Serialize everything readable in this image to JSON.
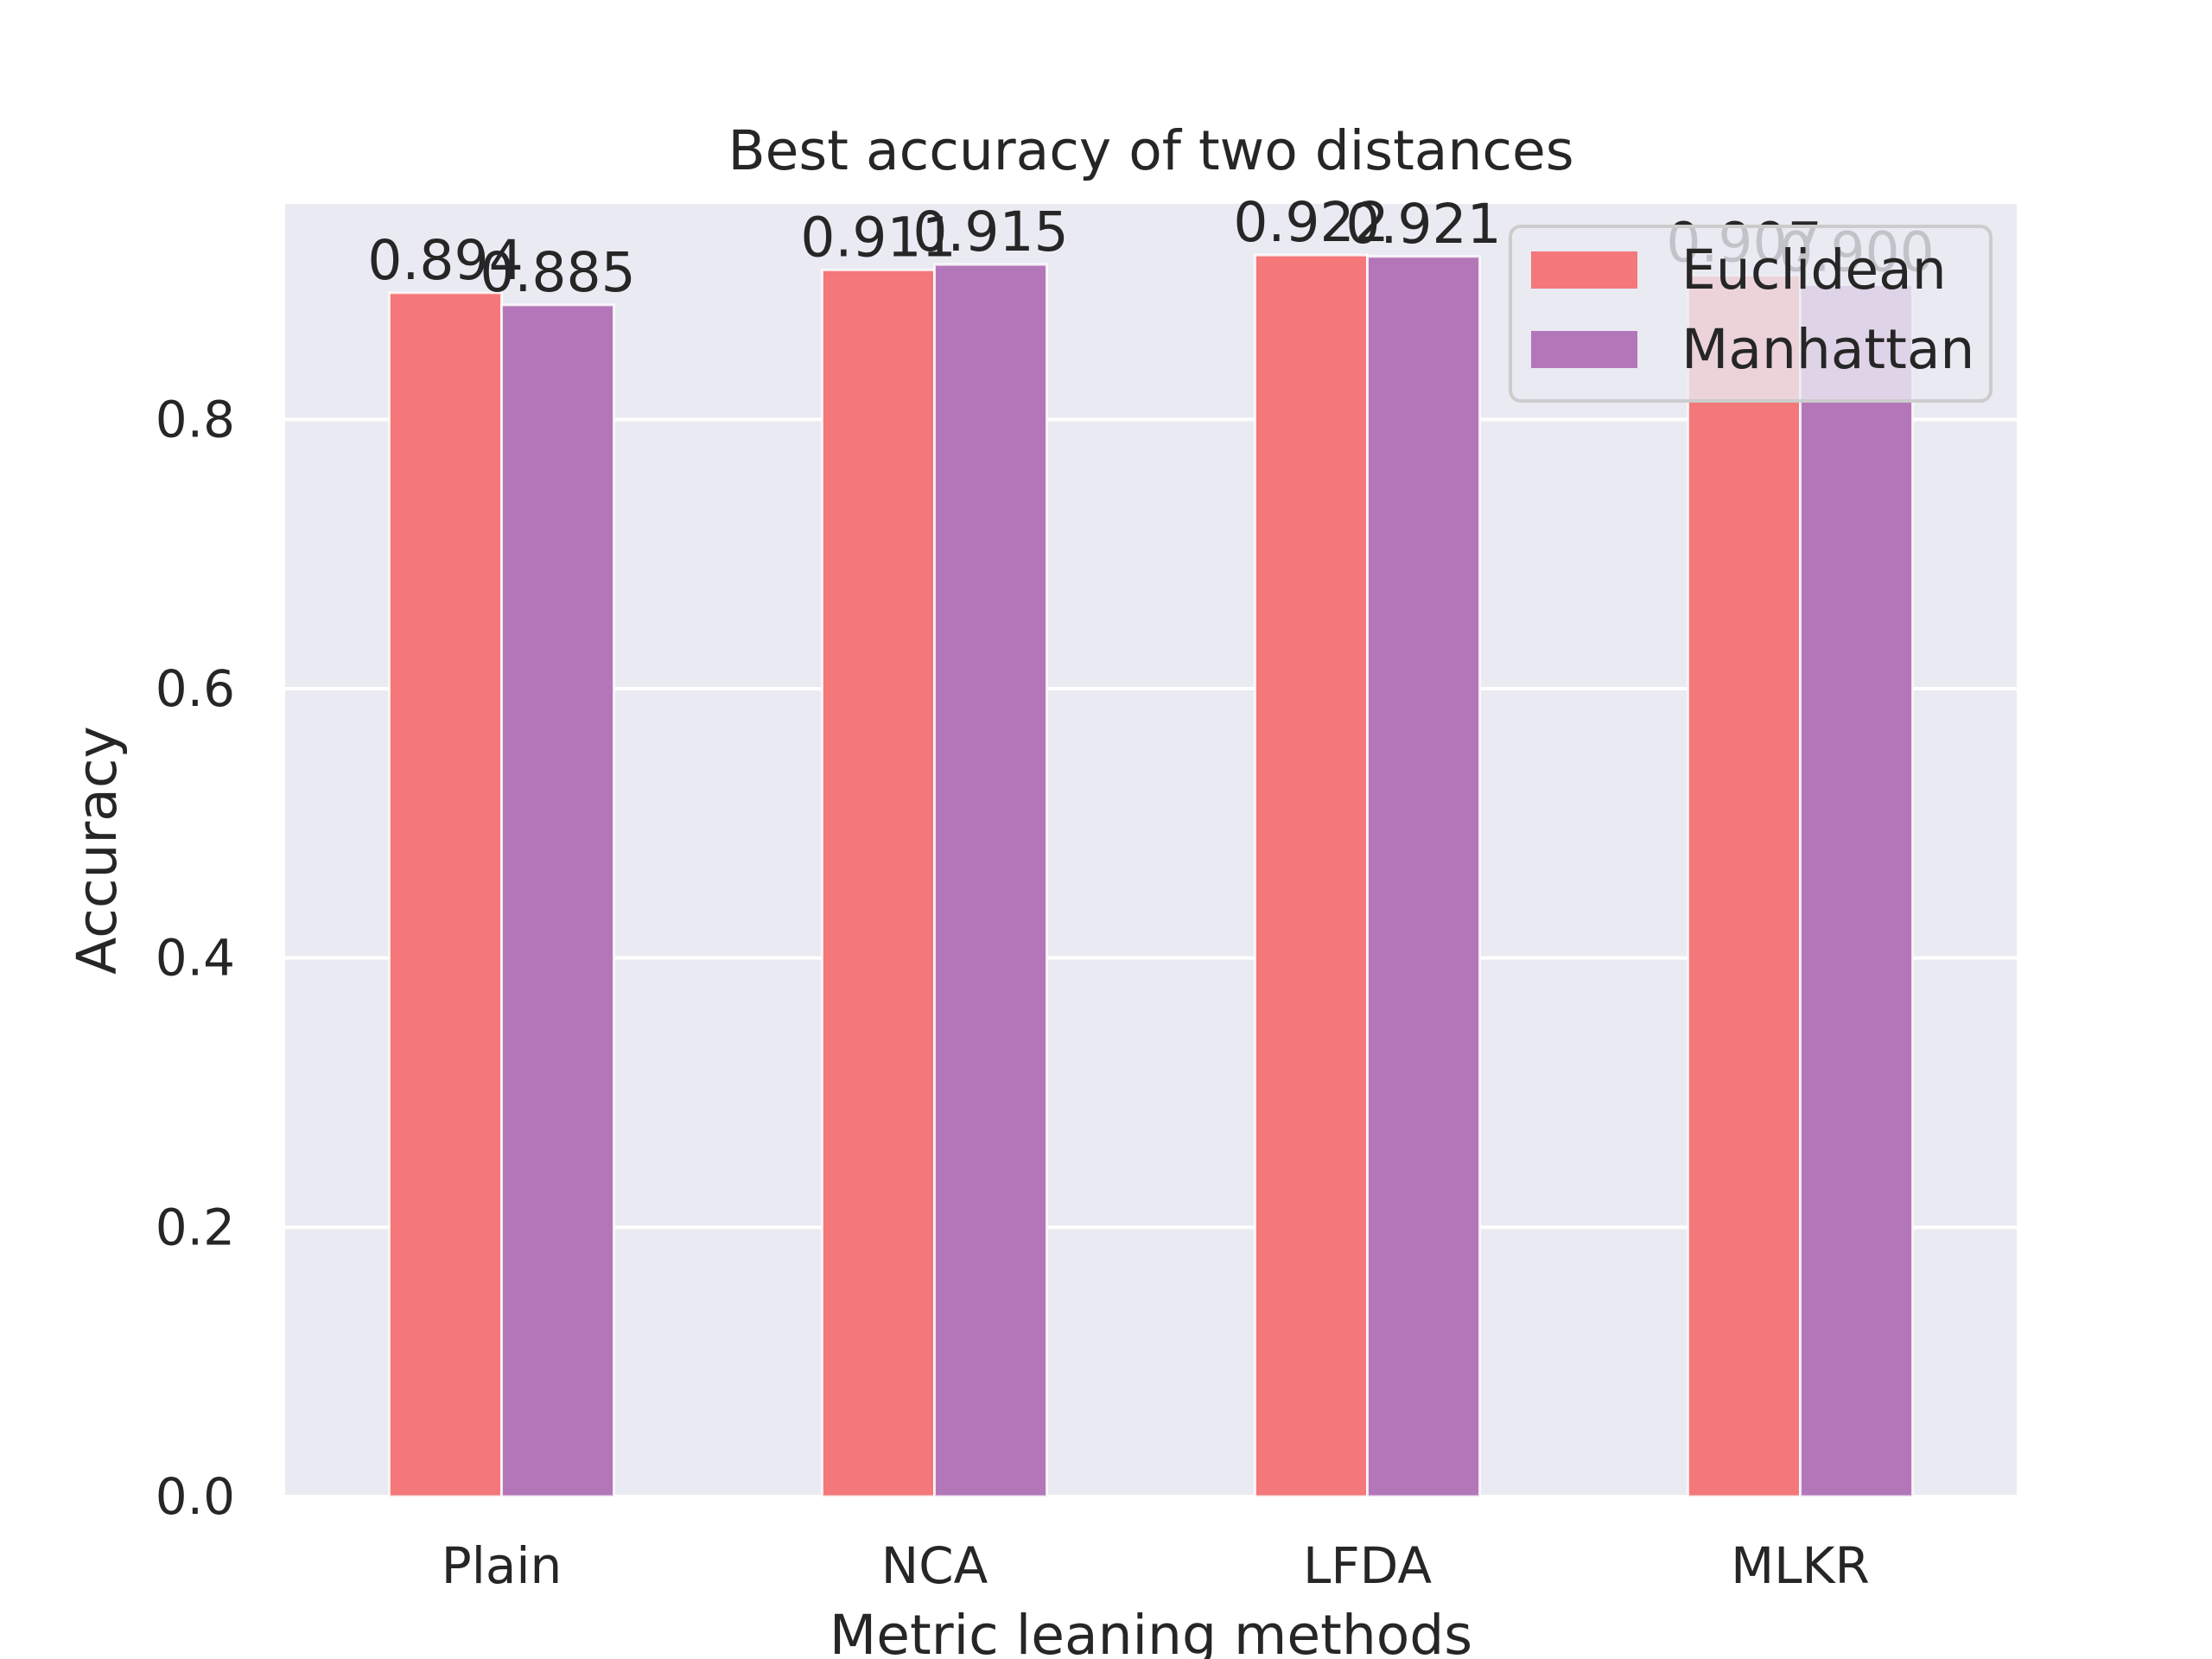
{
  "chart_data": {
    "type": "bar",
    "title": "Best accuracy of two distances",
    "xlabel": "Metric leaning methods",
    "ylabel": "Accuracy",
    "categories": [
      "Plain",
      "NCA",
      "LFDA",
      "MLKR"
    ],
    "series": [
      {
        "name": "Euclidean",
        "values": [
          0.894,
          0.911,
          0.922,
          0.907
        ],
        "color": "#f4777a"
      },
      {
        "name": "Manhattan",
        "values": [
          0.885,
          0.915,
          0.921,
          0.9
        ],
        "color": "#b377b9"
      }
    ],
    "data_labels": [
      [
        "0.894",
        "0.911",
        "0.922",
        "0.907"
      ],
      [
        "0.885",
        "0.915",
        "0.921",
        "0.900"
      ]
    ],
    "ylim": [
      0,
      0.96
    ],
    "yticks": [
      0.0,
      0.2,
      0.4,
      0.6,
      0.8
    ],
    "ytick_labels": [
      "0.0",
      "0.2",
      "0.4",
      "0.6",
      "0.8"
    ],
    "grid": true,
    "legend_position": "top-right",
    "colors": {
      "plot_background": "#eaeaf2",
      "grid": "#ffffff",
      "text": "#262626"
    }
  }
}
